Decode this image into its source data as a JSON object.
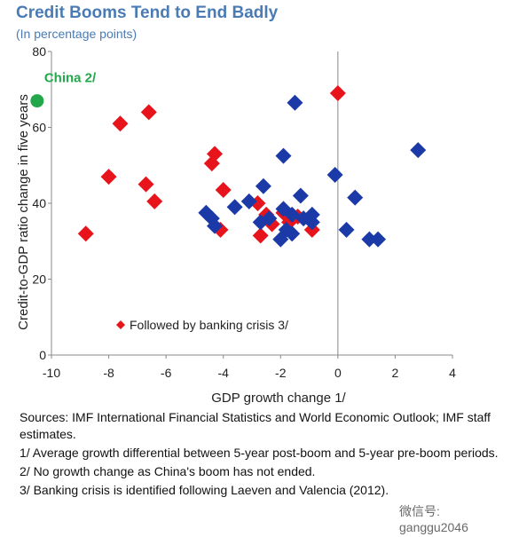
{
  "title": "Credit Booms Tend to End Badly",
  "subtitle": "(In percentage points)",
  "chart_data": {
    "type": "scatter",
    "xlabel": "GDP growth change 1/",
    "ylabel": "Credit-to-GDP ratio change in five years",
    "xlim": [
      -10,
      4
    ],
    "ylim": [
      0,
      80
    ],
    "xticks": [
      "-10",
      "-8",
      "-6",
      "-4",
      "-2",
      "0",
      "2",
      "4"
    ],
    "yticks": [
      "0",
      "20",
      "40",
      "60",
      "80"
    ],
    "grid": false,
    "reference_line_x": 0,
    "legend": {
      "label": "Followed by banking crisis 3/",
      "placement": "bottom-left"
    },
    "colors": {
      "crisis": "#e8141b",
      "no_crisis": "#1b3aa8",
      "china": "#22a84a"
    },
    "series": [
      {
        "name": "Followed by banking crisis 3/",
        "marker": "diamond",
        "color": "#e8141b",
        "points": [
          [
            -8.8,
            32
          ],
          [
            -8,
            47
          ],
          [
            -7.6,
            61
          ],
          [
            -6.7,
            45
          ],
          [
            -6.6,
            64
          ],
          [
            -6.4,
            40.5
          ],
          [
            -4.4,
            50.5
          ],
          [
            -4.3,
            53
          ],
          [
            -4.0,
            43.5
          ],
          [
            -4.1,
            33
          ],
          [
            -2.8,
            40
          ],
          [
            -2.7,
            31.5
          ],
          [
            -2.5,
            37
          ],
          [
            -2.3,
            34.5
          ],
          [
            -1.9,
            37.5
          ],
          [
            -1.7,
            35
          ],
          [
            -1.4,
            36.5
          ],
          [
            -0.9,
            33
          ],
          [
            0,
            69
          ]
        ]
      },
      {
        "marker": "diamond",
        "color": "#1b3aa8",
        "points": [
          [
            -4.6,
            37.5
          ],
          [
            -4.4,
            36
          ],
          [
            -4.3,
            34
          ],
          [
            -3.6,
            39
          ],
          [
            -3.1,
            40.5
          ],
          [
            -2.6,
            44.5
          ],
          [
            -2.7,
            35
          ],
          [
            -2.4,
            36
          ],
          [
            -2.0,
            30.5
          ],
          [
            -1.9,
            52.5
          ],
          [
            -1.8,
            33
          ],
          [
            -1.6,
            37
          ],
          [
            -1.3,
            42
          ],
          [
            -1.5,
            66.5
          ],
          [
            -1.9,
            38.5
          ],
          [
            -1.6,
            32
          ],
          [
            -1.2,
            36
          ],
          [
            -0.9,
            37
          ],
          [
            -0.9,
            35
          ],
          [
            -0.1,
            47.5
          ],
          [
            0.3,
            33
          ],
          [
            0.6,
            41.5
          ],
          [
            1.1,
            30.5
          ],
          [
            1.4,
            30.5
          ],
          [
            2.8,
            54
          ]
        ]
      },
      {
        "name": "China 2/",
        "marker": "circle",
        "color": "#22a84a",
        "points": [
          [
            -10.5,
            67
          ]
        ]
      }
    ]
  },
  "notes": [
    "Sources: IMF International Financial Statistics and World Economic Outlook; IMF staff estimates.",
    "1/ Average growth differential between 5-year post-boom and 5-year pre-boom periods.",
    "2/ No growth change as China's boom has not ended.",
    "3/ Banking crisis is identified following Laeven and Valencia (2012)."
  ],
  "watermark": "微信号: ganggu2046"
}
